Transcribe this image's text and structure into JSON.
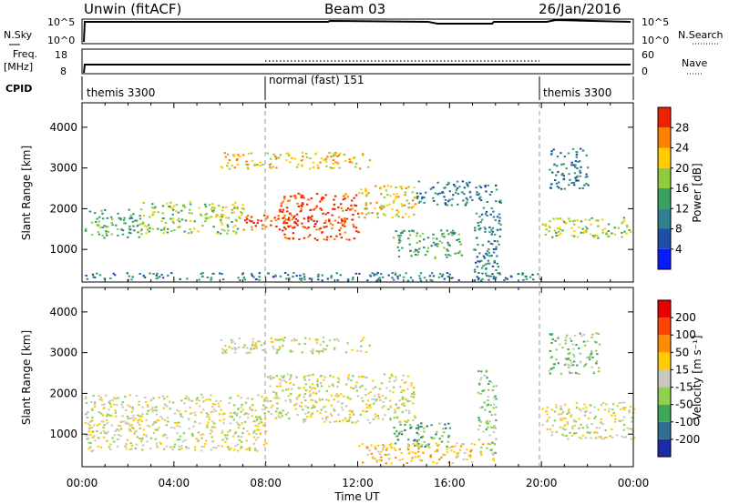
{
  "header": {
    "title": "Unwin (fitACF)",
    "beam": "Beam 03",
    "date": "26/Jan/2016"
  },
  "time_axis": {
    "label": "Time UT",
    "ticks": [
      "00:00",
      "04:00",
      "08:00",
      "12:00",
      "16:00",
      "20:00",
      "00:00"
    ],
    "range_hours": [
      0,
      24
    ]
  },
  "params": {
    "nsky_label": "N.Sky",
    "nsky_ticks": [
      "10^5",
      "10^0"
    ],
    "nsearch_label": "N.Search",
    "nsearch_ticks": [
      "10^5",
      "10^0"
    ],
    "freq_label": "Freq.",
    "freq_unit": "[MHz]",
    "freq_ticks": [
      "18",
      "8"
    ],
    "nave_label": "Nave",
    "nave_ticks": [
      "60",
      "0"
    ],
    "cpid_label": "CPID",
    "cpid_segments": [
      {
        "label": "themis 3300",
        "start_h": 0,
        "end_h": 8
      },
      {
        "label": "normal (fast) 151",
        "start_h": 8,
        "end_h": 20
      },
      {
        "label": "themis 3300",
        "start_h": 20,
        "end_h": 24
      }
    ]
  },
  "chart_data": [
    {
      "type": "heatmap",
      "title": "",
      "xlabel": "Time UT",
      "ylabel": "Slant Range [km]",
      "yticks": [
        "1000",
        "2000",
        "3000",
        "4000"
      ],
      "ylim": [
        200,
        4600
      ],
      "xlim": [
        0,
        24
      ],
      "colorbar": {
        "label": "Power [dB]",
        "ticks": [
          "4",
          "8",
          "12",
          "16",
          "20",
          "24",
          "28"
        ],
        "range": [
          0,
          32
        ],
        "colors": [
          "#0a1aff",
          "#1e4fa6",
          "#2f7f8f",
          "#39a062",
          "#8fcc3b",
          "#ffcc00",
          "#ff7f00",
          "#ee2200"
        ]
      },
      "regions": [
        {
          "t": [
            0.1,
            2.5
          ],
          "r": [
            1300,
            2000
          ],
          "level": 3
        },
        {
          "t": [
            2.5,
            7.0
          ],
          "r": [
            1400,
            2200
          ],
          "level": 4
        },
        {
          "t": [
            7.0,
            10.0
          ],
          "r": [
            1500,
            1900
          ],
          "level": 7
        },
        {
          "t": [
            8.5,
            12.0
          ],
          "r": [
            1250,
            2400
          ],
          "level": 7
        },
        {
          "t": [
            12.0,
            14.5
          ],
          "r": [
            1800,
            2600
          ],
          "level": 5
        },
        {
          "t": [
            14.5,
            17.0
          ],
          "r": [
            2100,
            2700
          ],
          "level": 2
        },
        {
          "t": [
            6.0,
            12.5
          ],
          "r": [
            3000,
            3400
          ],
          "level": 5
        },
        {
          "t": [
            13.5,
            16.5
          ],
          "r": [
            800,
            1500
          ],
          "level": 3
        },
        {
          "t": [
            0.1,
            20.0
          ],
          "r": [
            250,
            450
          ],
          "level": 2
        },
        {
          "t": [
            20.0,
            24.0
          ],
          "r": [
            1300,
            1800
          ],
          "level": 4
        },
        {
          "t": [
            17.0,
            18.2
          ],
          "r": [
            300,
            2600
          ],
          "level": 2
        },
        {
          "t": [
            20.3,
            22.0
          ],
          "r": [
            2500,
            3500
          ],
          "level": 2
        }
      ]
    },
    {
      "type": "heatmap",
      "title": "",
      "xlabel": "Time UT",
      "ylabel": "Slant Range [km]",
      "yticks": [
        "1000",
        "2000",
        "3000",
        "4000"
      ],
      "ylim": [
        200,
        4600
      ],
      "xlim": [
        0,
        24
      ],
      "colorbar": {
        "label": "Velocity [m s⁻¹]",
        "ticks": [
          "200",
          "100",
          "50",
          "15",
          "-15",
          "-50",
          "-100",
          "-200"
        ],
        "colors": [
          "#1a2ca8",
          "#2f6f8f",
          "#3fa65a",
          "#8fd14f",
          "#c8c8c0",
          "#ffcc00",
          "#ff8c00",
          "#ff4400",
          "#e60000"
        ]
      },
      "regions": [
        {
          "t": [
            0.1,
            8.0
          ],
          "r": [
            600,
            2000
          ],
          "level": 4
        },
        {
          "t": [
            8.0,
            14.5
          ],
          "r": [
            1300,
            2500
          ],
          "level": 4
        },
        {
          "t": [
            6.0,
            12.5
          ],
          "r": [
            3000,
            3400
          ],
          "level": 4
        },
        {
          "t": [
            13.5,
            16.0
          ],
          "r": [
            700,
            1300
          ],
          "level": 2
        },
        {
          "t": [
            12.0,
            18.0
          ],
          "r": [
            300,
            800
          ],
          "level": 5
        },
        {
          "t": [
            20.0,
            24.0
          ],
          "r": [
            900,
            1800
          ],
          "level": 4
        },
        {
          "t": [
            17.2,
            18.0
          ],
          "r": [
            500,
            2600
          ],
          "level": 3
        },
        {
          "t": [
            20.3,
            22.5
          ],
          "r": [
            2500,
            3500
          ],
          "level": 3
        }
      ]
    }
  ]
}
